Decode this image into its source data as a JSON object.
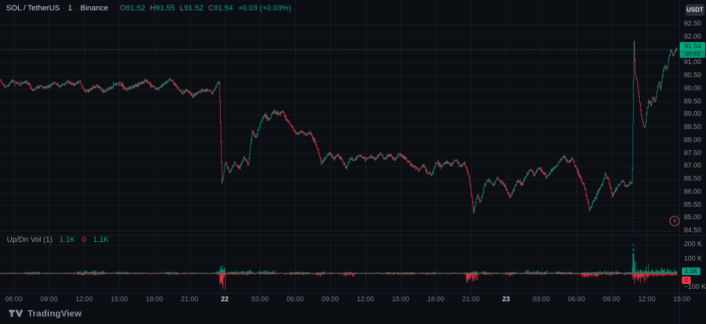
{
  "header": {
    "symbol": "SOL / TetherUS",
    "separator": "·",
    "interval": "1",
    "exchange": "Binance",
    "ohlc": [
      {
        "k": "O",
        "v": "91.52"
      },
      {
        "k": "H",
        "v": "91.55"
      },
      {
        "k": "L",
        "v": "91.52"
      },
      {
        "k": "C",
        "v": "91.54"
      }
    ],
    "change": "+0.03 (+0.03%)"
  },
  "toolbar": {
    "currency_button": "USDT"
  },
  "price_axis": {
    "ticks": [
      "92.50",
      "92.00",
      "91.50",
      "91.00",
      "90.50",
      "90.00",
      "89.50",
      "89.00",
      "88.50",
      "88.00",
      "87.50",
      "87.00",
      "86.50",
      "86.00",
      "85.50",
      "85.00",
      "84.50"
    ],
    "price_label": {
      "price": "91.54",
      "countdown": "00:43"
    }
  },
  "volume_axis": {
    "ticks": [
      {
        "label": "200 K",
        "v": 200
      },
      {
        "label": "100 K",
        "v": 100
      },
      {
        "label": "−100 K",
        "v": -100
      }
    ],
    "up_label": "1.1K",
    "down_label": "0"
  },
  "time_axis": {
    "ticks": [
      {
        "label": "06:00"
      },
      {
        "label": "09:00"
      },
      {
        "label": "12:00"
      },
      {
        "label": "15:00"
      },
      {
        "label": "18:00"
      },
      {
        "label": "21:00"
      },
      {
        "label": "22",
        "major": true
      },
      {
        "label": "03:00"
      },
      {
        "label": "06:00"
      },
      {
        "label": "09:00"
      },
      {
        "label": "12:00"
      },
      {
        "label": "15:00"
      },
      {
        "label": "18:00"
      },
      {
        "label": "21:00"
      },
      {
        "label": "23",
        "major": true
      },
      {
        "label": "03:00"
      },
      {
        "label": "06:00"
      },
      {
        "label": "09:00"
      },
      {
        "label": "12:00"
      },
      {
        "label": "15:00"
      }
    ]
  },
  "volume_legend": {
    "title": "Up/Dn Vol (1)",
    "values": [
      {
        "text": "1.1K",
        "tone": "up"
      },
      {
        "text": "0",
        "tone": "down"
      },
      {
        "text": "1.1K",
        "tone": "up"
      }
    ]
  },
  "logo": {
    "text": "TradingView"
  },
  "colors": {
    "bg": "#0b0e13",
    "grid": "rgba(240,243,250,0.055)",
    "up": "#089981",
    "down": "#f23645",
    "up_bright": "#0fa883",
    "label_bg": "#00a97f",
    "label_bg2": "#089372",
    "axis_text": "#878b94",
    "text_bright": "#d1d4dc"
  },
  "chart_data": {
    "type": "candlestick-with-volume",
    "title": "SOL / TetherUS · 1 · Binance",
    "symbol": "SOL/USDT",
    "interval": "1m",
    "exchange": "Binance",
    "last_candle": {
      "open": 91.52,
      "high": 91.55,
      "low": 91.52,
      "close": 91.54,
      "change": 0.03,
      "change_pct": 0.03
    },
    "last_price": 91.54,
    "price_range": [
      84.5,
      92.5
    ],
    "volume_range_k": [
      -100,
      250
    ],
    "grid": true,
    "legend_position": "top-left",
    "price_path": [
      [
        0,
        90.35
      ],
      [
        8,
        90.05
      ],
      [
        18,
        90.3
      ],
      [
        28,
        90.15
      ],
      [
        38,
        90.3
      ],
      [
        48,
        89.95
      ],
      [
        58,
        90.1
      ],
      [
        68,
        90.05
      ],
      [
        78,
        90.2
      ],
      [
        88,
        90.1
      ],
      [
        98,
        90.28
      ],
      [
        108,
        90.15
      ],
      [
        116,
        90.28
      ],
      [
        124,
        89.85
      ],
      [
        132,
        90.0
      ],
      [
        140,
        90.12
      ],
      [
        150,
        89.9
      ],
      [
        158,
        90.0
      ],
      [
        166,
        90.15
      ],
      [
        174,
        90.22
      ],
      [
        182,
        89.98
      ],
      [
        190,
        90.05
      ],
      [
        200,
        90.15
      ],
      [
        212,
        90.32
      ],
      [
        220,
        90.1
      ],
      [
        228,
        89.98
      ],
      [
        238,
        90.2
      ],
      [
        247,
        90.38
      ],
      [
        256,
        90.1
      ],
      [
        264,
        89.85
      ],
      [
        272,
        89.95
      ],
      [
        280,
        89.72
      ],
      [
        290,
        89.9
      ],
      [
        300,
        89.95
      ],
      [
        308,
        89.85
      ],
      [
        314,
        90.1
      ],
      [
        318,
        90.28
      ],
      [
        322,
        86.4
      ],
      [
        327,
        87.15
      ],
      [
        333,
        86.75
      ],
      [
        340,
        87.15
      ],
      [
        347,
        86.9
      ],
      [
        354,
        87.35
      ],
      [
        360,
        87.05
      ],
      [
        366,
        88.35
      ],
      [
        371,
        88.1
      ],
      [
        378,
        88.7
      ],
      [
        384,
        89.0
      ],
      [
        390,
        88.8
      ],
      [
        397,
        89.15
      ],
      [
        404,
        89.0
      ],
      [
        410,
        89.1
      ],
      [
        417,
        88.75
      ],
      [
        424,
        88.5
      ],
      [
        430,
        88.25
      ],
      [
        437,
        88.35
      ],
      [
        444,
        88.2
      ],
      [
        450,
        88.3
      ],
      [
        456,
        88.0
      ],
      [
        461,
        87.65
      ],
      [
        466,
        87.1
      ],
      [
        472,
        87.35
      ],
      [
        478,
        87.5
      ],
      [
        484,
        87.3
      ],
      [
        490,
        87.45
      ],
      [
        497,
        87.2
      ],
      [
        502,
        86.95
      ],
      [
        508,
        87.3
      ],
      [
        515,
        87.25
      ],
      [
        522,
        87.45
      ],
      [
        530,
        87.25
      ],
      [
        537,
        87.4
      ],
      [
        544,
        87.25
      ],
      [
        551,
        87.5
      ],
      [
        558,
        87.3
      ],
      [
        565,
        87.45
      ],
      [
        572,
        87.25
      ],
      [
        579,
        87.5
      ],
      [
        586,
        87.35
      ],
      [
        593,
        87.15
      ],
      [
        600,
        87.0
      ],
      [
        607,
        86.85
      ],
      [
        614,
        87.05
      ],
      [
        620,
        86.75
      ],
      [
        626,
        86.7
      ],
      [
        633,
        87.15
      ],
      [
        640,
        87.0
      ],
      [
        647,
        87.2
      ],
      [
        654,
        87.05
      ],
      [
        661,
        87.25
      ],
      [
        668,
        87.0
      ],
      [
        674,
        87.15
      ],
      [
        681,
        86.5
      ],
      [
        687,
        85.2
      ],
      [
        692,
        85.9
      ],
      [
        697,
        85.6
      ],
      [
        703,
        86.3
      ],
      [
        709,
        86.5
      ],
      [
        715,
        86.25
      ],
      [
        721,
        86.55
      ],
      [
        727,
        86.4
      ],
      [
        733,
        86.2
      ],
      [
        739,
        85.8
      ],
      [
        745,
        86.1
      ],
      [
        751,
        86.45
      ],
      [
        757,
        86.3
      ],
      [
        763,
        86.6
      ],
      [
        769,
        86.9
      ],
      [
        775,
        86.65
      ],
      [
        781,
        86.95
      ],
      [
        787,
        86.8
      ],
      [
        793,
        86.55
      ],
      [
        799,
        86.8
      ],
      [
        806,
        87.0
      ],
      [
        812,
        87.2
      ],
      [
        818,
        87.35
      ],
      [
        824,
        87.15
      ],
      [
        830,
        87.3
      ],
      [
        836,
        86.9
      ],
      [
        842,
        86.55
      ],
      [
        848,
        86.2
      ],
      [
        855,
        85.3
      ],
      [
        861,
        85.65
      ],
      [
        867,
        86.0
      ],
      [
        873,
        86.3
      ],
      [
        878,
        86.7
      ],
      [
        883,
        86.45
      ],
      [
        888,
        85.85
      ],
      [
        893,
        86.1
      ],
      [
        898,
        86.3
      ],
      [
        903,
        86.45
      ],
      [
        908,
        86.2
      ],
      [
        913,
        86.35
      ],
      [
        917,
        86.4
      ],
      [
        919.5,
        91.9
      ],
      [
        921,
        90.6
      ],
      [
        924,
        90.3
      ],
      [
        928,
        89.4
      ],
      [
        932,
        88.7
      ],
      [
        935,
        88.45
      ],
      [
        938,
        89.1
      ],
      [
        941,
        89.55
      ],
      [
        944,
        89.35
      ],
      [
        947,
        89.7
      ],
      [
        950,
        89.45
      ],
      [
        953,
        89.95
      ],
      [
        956,
        90.3
      ],
      [
        958,
        90.0
      ],
      [
        961,
        90.55
      ],
      [
        964,
        90.9
      ],
      [
        967,
        90.7
      ],
      [
        970,
        91.2
      ],
      [
        973,
        91.5
      ],
      [
        976,
        91.25
      ],
      [
        979,
        91.45
      ],
      [
        982,
        91.54
      ]
    ],
    "volume_events": [
      [
        36,
        58,
        10,
        5
      ],
      [
        112,
        152,
        16,
        9
      ],
      [
        168,
        186,
        9,
        5
      ],
      [
        240,
        258,
        8,
        5
      ],
      [
        314,
        318,
        25,
        10
      ],
      [
        318,
        327,
        45,
        110
      ],
      [
        330,
        362,
        14,
        8
      ],
      [
        376,
        398,
        16,
        6
      ],
      [
        420,
        448,
        8,
        6
      ],
      [
        458,
        470,
        6,
        14
      ],
      [
        498,
        514,
        5,
        22
      ],
      [
        560,
        600,
        6,
        5
      ],
      [
        618,
        630,
        5,
        10
      ],
      [
        676,
        692,
        8,
        55
      ],
      [
        700,
        716,
        8,
        8
      ],
      [
        734,
        746,
        5,
        14
      ],
      [
        762,
        794,
        16,
        6
      ],
      [
        806,
        830,
        10,
        6
      ],
      [
        844,
        874,
        8,
        24
      ],
      [
        876,
        900,
        14,
        6
      ],
      [
        904,
        917,
        9,
        7
      ],
      [
        917,
        922,
        230,
        80
      ],
      [
        922,
        940,
        25,
        60
      ],
      [
        940,
        985,
        30,
        20
      ]
    ]
  }
}
